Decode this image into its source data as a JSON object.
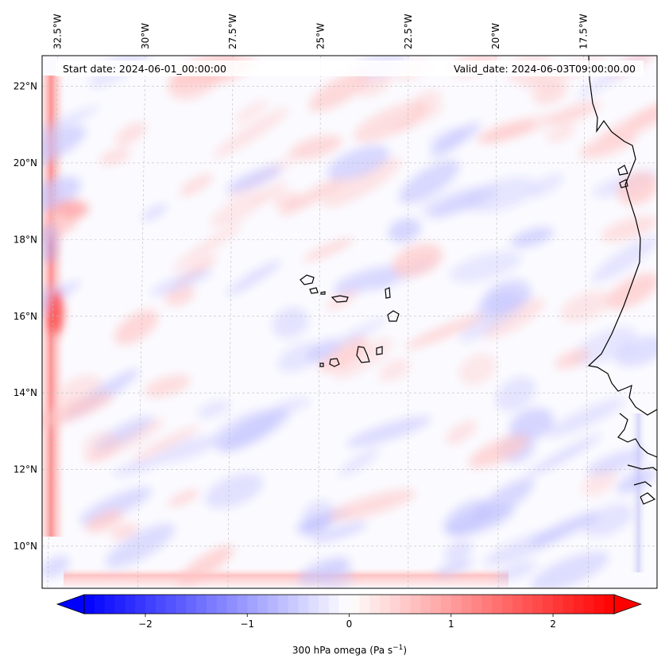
{
  "map": {
    "start_date_text": "Start date: 2024-06-01_00:00:00",
    "valid_date_text": "Valid_date: 2024-06-03T09:00:00.00",
    "lon_labels": [
      {
        "text": "32.5°W",
        "value": -32.5
      },
      {
        "text": "30°W",
        "value": -30.0
      },
      {
        "text": "27.5°W",
        "value": -27.5
      },
      {
        "text": "25°W",
        "value": -25.0
      },
      {
        "text": "22.5°W",
        "value": -22.5
      },
      {
        "text": "20°W",
        "value": -20.0
      },
      {
        "text": "17.5°W",
        "value": -17.5
      }
    ],
    "lat_labels": [
      {
        "text": "22°N",
        "value": 22
      },
      {
        "text": "20°N",
        "value": 20
      },
      {
        "text": "18°N",
        "value": 18
      },
      {
        "text": "16°N",
        "value": 16
      },
      {
        "text": "14°N",
        "value": 14
      },
      {
        "text": "12°N",
        "value": 12
      },
      {
        "text": "10°N",
        "value": 10
      }
    ],
    "lon_range": [
      -32.8,
      -15.5
    ],
    "lat_range": [
      8.9,
      22.8
    ],
    "gridlines": true,
    "field": "300 hPa omega",
    "colormap": "bwr",
    "colors": {
      "negative": "#0000ff",
      "zero": "#ffffff",
      "positive": "#ff0000",
      "coast": "#000000"
    }
  },
  "colorbar": {
    "label_prefix": "300 hPa omega (Pa s",
    "label_sup": "−1",
    "label_suffix": ")",
    "range": [
      -2.6,
      2.6
    ],
    "extend": "both",
    "ticks": [
      {
        "text": "−2",
        "value": -2
      },
      {
        "text": "−1",
        "value": -1
      },
      {
        "text": "0",
        "value": 0
      },
      {
        "text": "1",
        "value": 1
      },
      {
        "text": "2",
        "value": 2
      }
    ]
  }
}
